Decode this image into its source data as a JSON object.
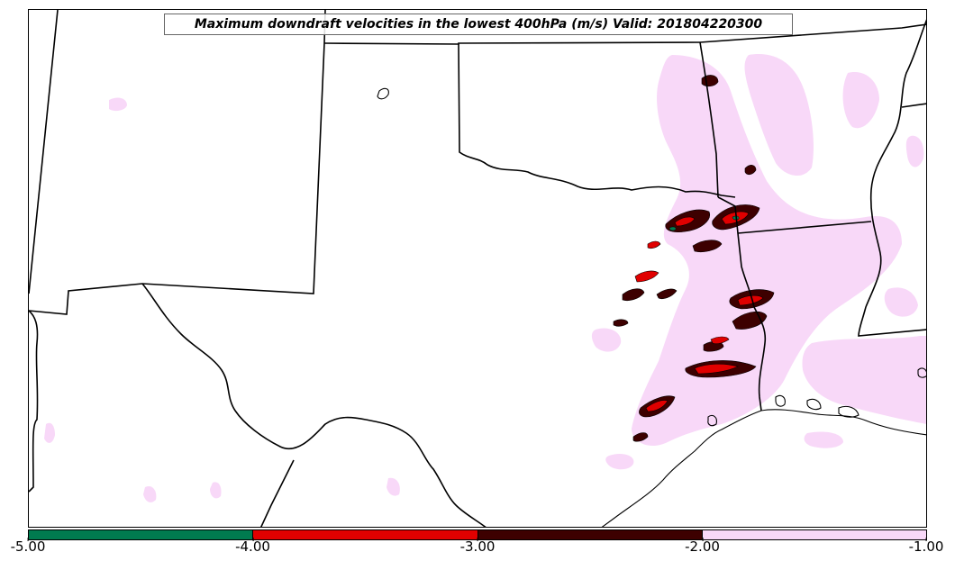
{
  "map": {
    "title": "Maximum downdraft velocities in the lowest 400hPa (m/s) Valid: 201804220300",
    "boundary_color": "#000000",
    "region": "South-central United States"
  },
  "colorbar": {
    "segments": [
      {
        "range": [
          -5.0,
          -4.0
        ],
        "color": "#007b4f"
      },
      {
        "range": [
          -4.0,
          -3.0
        ],
        "color": "#e00000"
      },
      {
        "range": [
          -3.0,
          -2.0
        ],
        "color": "#3d0000"
      },
      {
        "range": [
          -2.0,
          -1.0
        ],
        "color": "#f8d8f8"
      }
    ],
    "ticks": [
      "-5.00",
      "-4.00",
      "-3.00",
      "-2.00",
      "-1.00"
    ]
  }
}
